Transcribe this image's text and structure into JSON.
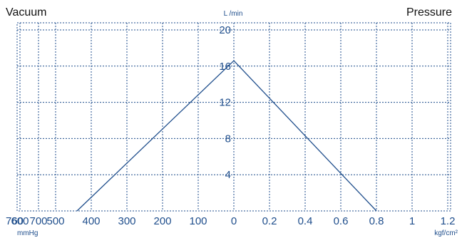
{
  "chart_data": {
    "type": "line",
    "title_left": "Vacuum",
    "title_right": "Pressure",
    "ylabel": "L /min",
    "yticks": [
      "20",
      "16",
      "12",
      "8",
      "4"
    ],
    "vacuum_axis": {
      "label": "mmHg",
      "ticks": [
        "760",
        "700",
        "600",
        "500",
        "400",
        "300",
        "200",
        "100",
        "0"
      ],
      "values": [
        760,
        700,
        600,
        500,
        400,
        300,
        200,
        100,
        0
      ]
    },
    "pressure_axis": {
      "label": "kgf/cm²",
      "ticks": [
        "0.2",
        "0.4",
        "0.6",
        "0.8",
        "1",
        "1.2"
      ],
      "values": [
        0.2,
        0.4,
        0.6,
        0.8,
        1.0,
        1.2
      ]
    },
    "ylim": [
      0,
      20
    ],
    "series": [
      {
        "side": "vacuum",
        "x_units": "mmHg",
        "x": [
          440,
          0
        ],
        "y": [
          0,
          16.6
        ]
      },
      {
        "side": "pressure",
        "x_units": "kgf/cm²",
        "x": [
          0,
          0.8
        ],
        "y": [
          16.6,
          0
        ]
      }
    ],
    "grid": true,
    "color": "#1f4e8c"
  }
}
